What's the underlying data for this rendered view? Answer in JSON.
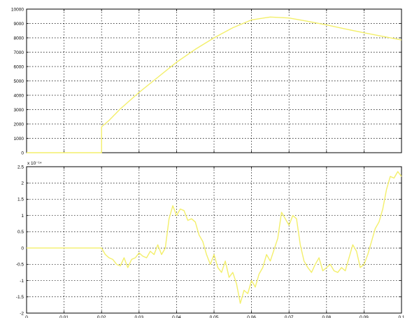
{
  "chart_data": [
    {
      "type": "line",
      "title": "",
      "xlabel": "",
      "ylabel": "",
      "xlim": [
        0,
        0.1
      ],
      "ylim": [
        0,
        10000
      ],
      "grid": true,
      "line_color": "#f3ef6a",
      "x_ticks": [
        0,
        0.01,
        0.02,
        0.03,
        0.04,
        0.05,
        0.06,
        0.07,
        0.08,
        0.09,
        0.1
      ],
      "x_tick_labels": [
        "",
        "",
        "",
        "",
        "",
        "",
        "",
        "",
        "",
        "",
        ""
      ],
      "y_ticks": [
        0,
        1000,
        2000,
        3000,
        4000,
        5000,
        6000,
        7000,
        8000,
        9000,
        10000
      ],
      "y_tick_labels": [
        "0",
        "1000",
        "2000",
        "3000",
        "4000",
        "5000",
        "6000",
        "7000",
        "8000",
        "9000",
        "10000"
      ],
      "series": [
        {
          "x": [
            0,
            0.02,
            0.02,
            0.022,
            0.025,
            0.03,
            0.035,
            0.04,
            0.045,
            0.05,
            0.055,
            0.06,
            0.065,
            0.07,
            0.075,
            0.08,
            0.085,
            0.09,
            0.095,
            0.1
          ],
          "y": [
            0,
            0,
            1800,
            2250,
            3050,
            4200,
            5250,
            6300,
            7200,
            8000,
            8700,
            9250,
            9450,
            9380,
            9150,
            8900,
            8620,
            8350,
            8100,
            7850
          ]
        }
      ]
    },
    {
      "type": "line",
      "title": "",
      "xlabel": "",
      "ylabel": "",
      "xlim": [
        0,
        0.1
      ],
      "ylim": [
        -2,
        2.5
      ],
      "y_exponent_label": "x 10⁻¹⁴",
      "grid": true,
      "line_color": "#f3ef6a",
      "x_ticks": [
        0,
        0.01,
        0.02,
        0.03,
        0.04,
        0.05,
        0.06,
        0.07,
        0.08,
        0.09,
        0.1
      ],
      "x_tick_labels": [
        "0",
        "0.01",
        "0.02",
        "0.03",
        "0.04",
        "0.05",
        "0.06",
        "0.07",
        "0.08",
        "0.09",
        "0.1"
      ],
      "y_ticks": [
        -2,
        -1.5,
        -1,
        -0.5,
        0,
        0.5,
        1,
        1.5,
        2,
        2.5
      ],
      "y_tick_labels": [
        "-2",
        "-1.5",
        "-1",
        "-0.5",
        "0",
        "0.5",
        "1",
        "1.5",
        "2",
        "2.5"
      ],
      "series": [
        {
          "x": [
            0,
            0.02,
            0.021,
            0.022,
            0.023,
            0.024,
            0.025,
            0.026,
            0.027,
            0.028,
            0.029,
            0.03,
            0.031,
            0.032,
            0.033,
            0.034,
            0.035,
            0.036,
            0.037,
            0.038,
            0.039,
            0.04,
            0.041,
            0.042,
            0.043,
            0.044,
            0.045,
            0.046,
            0.047,
            0.048,
            0.049,
            0.05,
            0.051,
            0.052,
            0.053,
            0.054,
            0.055,
            0.056,
            0.057,
            0.058,
            0.059,
            0.06,
            0.061,
            0.062,
            0.063,
            0.064,
            0.065,
            0.066,
            0.067,
            0.068,
            0.069,
            0.07,
            0.071,
            0.072,
            0.073,
            0.074,
            0.075,
            0.076,
            0.077,
            0.078,
            0.079,
            0.08,
            0.081,
            0.082,
            0.083,
            0.084,
            0.085,
            0.086,
            0.087,
            0.088,
            0.089,
            0.09,
            0.091,
            0.092,
            0.093,
            0.094,
            0.095,
            0.096,
            0.097,
            0.098,
            0.099,
            0.1
          ],
          "y": [
            0,
            0,
            -0.2,
            -0.3,
            -0.35,
            -0.5,
            -0.55,
            -0.3,
            -0.6,
            -0.35,
            -0.3,
            -0.15,
            -0.25,
            -0.3,
            -0.1,
            -0.2,
            0.1,
            -0.2,
            0.0,
            0.9,
            1.3,
            1.0,
            1.2,
            1.15,
            0.85,
            0.9,
            0.8,
            0.4,
            0.2,
            -0.2,
            -0.5,
            -0.2,
            -0.6,
            -0.75,
            -0.4,
            -0.9,
            -0.75,
            -1.1,
            -1.7,
            -1.3,
            -1.4,
            -1.0,
            -1.2,
            -0.8,
            -0.6,
            -0.2,
            -0.4,
            -0.05,
            0.3,
            1.1,
            0.9,
            0.7,
            1.0,
            0.9,
            0.1,
            -0.4,
            -0.6,
            -0.75,
            -0.5,
            -0.3,
            -0.7,
            -0.6,
            -0.5,
            -0.7,
            -0.75,
            -0.6,
            -0.7,
            -0.3,
            0.1,
            -0.1,
            -0.6,
            -0.5,
            -0.2,
            0.2,
            0.6,
            0.8,
            1.2,
            1.8,
            2.2,
            2.15,
            2.35,
            2.2
          ]
        }
      ]
    }
  ]
}
